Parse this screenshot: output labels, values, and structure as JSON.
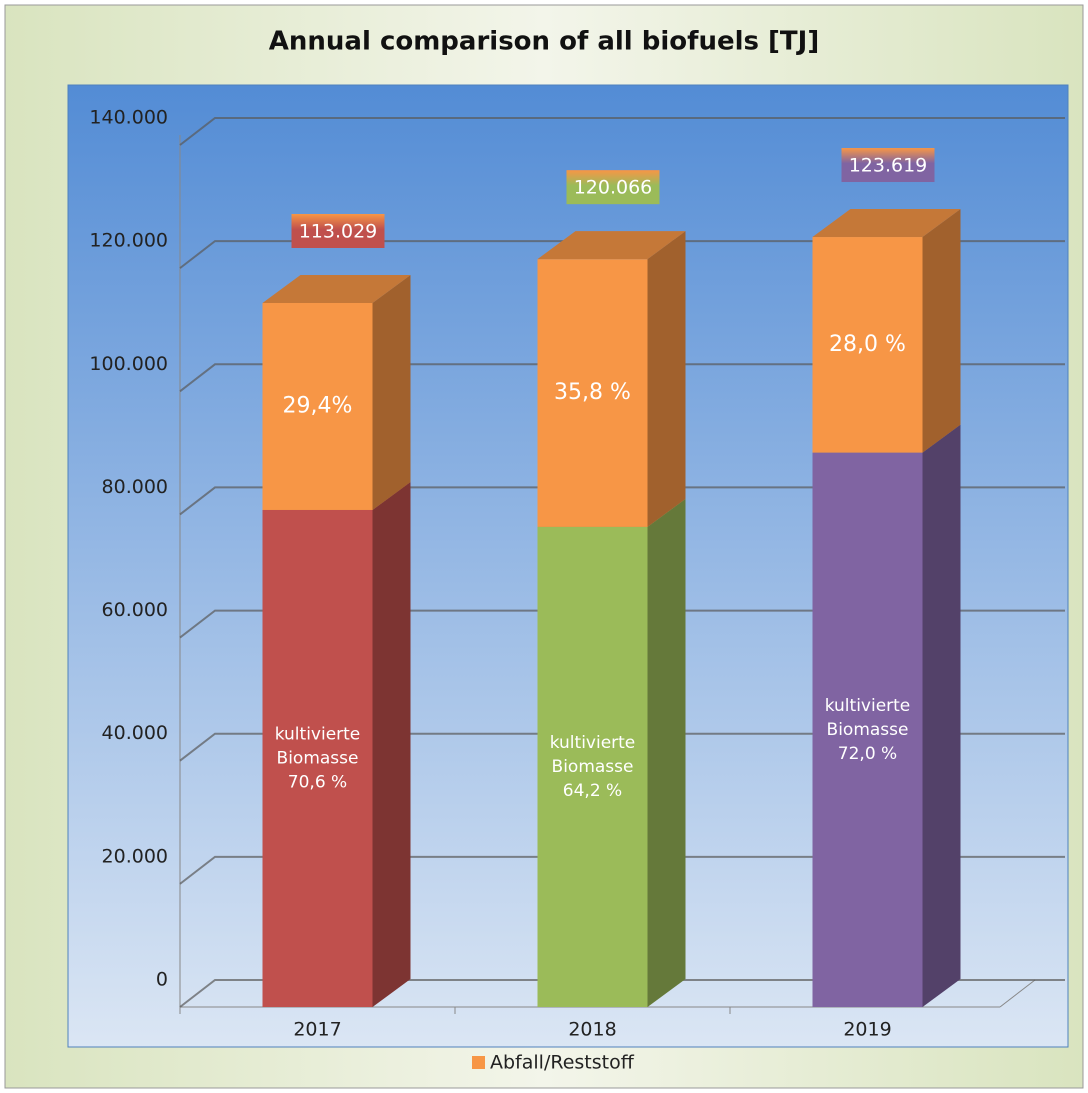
{
  "chart_data": {
    "type": "bar",
    "stacked": true,
    "3d": true,
    "title": "Annual comparison of all biofuels [TJ]",
    "categories": [
      "2017",
      "2018",
      "2019"
    ],
    "series": [
      {
        "colors": [
          "#c0504d",
          "#9bbb59",
          "#8064a2"
        ],
        "values": [
          79798,
          77082,
          89006
        ],
        "segment_labels": [
          [
            "kultivierte",
            "Biomasse",
            "70,6 %"
          ],
          [
            "kultivierte",
            "Biomasse",
            "64,2 %"
          ],
          [
            "kultivierte",
            "Biomasse",
            "72,0 %"
          ]
        ]
      },
      {
        "name": "Abfall/Reststoff",
        "color": "#f79646",
        "values": [
          33231,
          42984,
          34613
        ],
        "segment_labels": [
          [
            "29,4%"
          ],
          [
            "35,8 %"
          ],
          [
            "28,0 %"
          ]
        ]
      }
    ],
    "totals": {
      "values": [
        113029,
        120066,
        123619
      ],
      "value_labels": [
        "113.029",
        "120.066",
        "123.619"
      ]
    },
    "ylim": [
      0,
      140000
    ],
    "yticks": [
      0,
      {
        "value": 20000,
        "label": "20.000"
      },
      {
        "value": 40000,
        "label": "40.000"
      },
      {
        "value": 60000,
        "label": "60.000"
      },
      {
        "value": 80000,
        "label": "80.000"
      },
      {
        "value": 100000,
        "label": "100.000"
      },
      {
        "value": 120000,
        "label": "120.000"
      },
      {
        "value": 140000,
        "label": "140.000"
      }
    ],
    "grid": true,
    "legend": "bottom"
  }
}
